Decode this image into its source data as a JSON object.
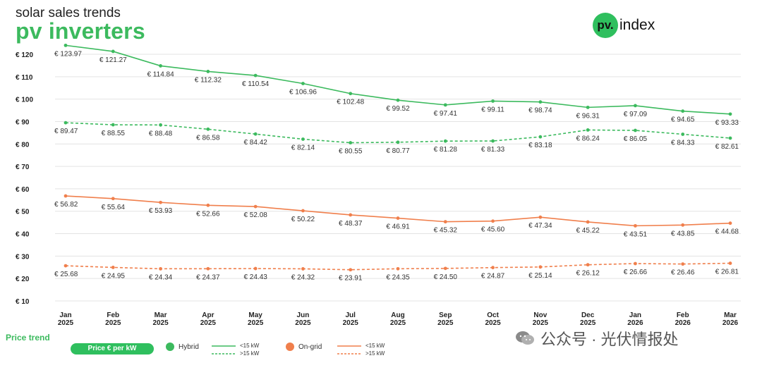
{
  "header": {
    "subtitle": "solar sales trends",
    "title": "pv inverters",
    "logo_badge": "pv.",
    "logo_text": "index"
  },
  "legend": {
    "title": "Price trend",
    "pill_label": "Price € per kW",
    "hybrid_label": "Hybrid",
    "hybrid_color": "#3cba5e",
    "ongrid_label": "On-grid",
    "ongrid_color": "#f07f4c",
    "hybrid_lt15": "<15 kW",
    "hybrid_gt15": ">15 kW",
    "ongrid_lt15": "<15 kW",
    "ongrid_gt15": ">15 kW"
  },
  "watermark": {
    "text": "公众号 · 光伏情报处"
  },
  "chart_data": {
    "type": "line",
    "categories": [
      [
        "Jan",
        "2025"
      ],
      [
        "Feb",
        "2025"
      ],
      [
        "Mar",
        "2025"
      ],
      [
        "Apr",
        "2025"
      ],
      [
        "May",
        "2025"
      ],
      [
        "Jun",
        "2025"
      ],
      [
        "Jul",
        "2025"
      ],
      [
        "Aug",
        "2025"
      ],
      [
        "Sep",
        "2025"
      ],
      [
        "Oct",
        "2025"
      ],
      [
        "Nov",
        "2025"
      ],
      [
        "Dec",
        "2025"
      ],
      [
        "Jan",
        "2026"
      ],
      [
        "Feb",
        "2026"
      ],
      [
        "Mar",
        "2026"
      ]
    ],
    "yticks": [
      "€ 10",
      "€ 20",
      "€ 30",
      "€ 40",
      "€ 50",
      "€ 60",
      "€ 70",
      "€ 80",
      "€ 90",
      "€ 100",
      "€ 110",
      "€ 120"
    ],
    "ylim": [
      10,
      122
    ],
    "series": [
      {
        "name": "Hybrid <15 kW",
        "color": "#3cba5e",
        "dash": false,
        "values": [
          123.97,
          121.27,
          114.84,
          112.32,
          110.54,
          106.96,
          102.48,
          99.52,
          97.41,
          99.11,
          98.74,
          96.31,
          97.09,
          94.65,
          93.33
        ],
        "labels": [
          "€ 123.97",
          "€ 121.27",
          "€ 114.84",
          "€ 112.32",
          "€ 110.54",
          "€ 106.96",
          "€ 102.48",
          "€ 99.52",
          "€ 97.41",
          "€ 99.11",
          "€ 98.74",
          "€ 96.31",
          "€ 97.09",
          "€ 94.65",
          "€ 93.33"
        ]
      },
      {
        "name": "Hybrid >15 kW",
        "color": "#3cba5e",
        "dash": true,
        "values": [
          89.47,
          88.55,
          88.48,
          86.58,
          84.42,
          82.14,
          80.55,
          80.77,
          81.28,
          81.33,
          83.18,
          86.24,
          86.05,
          84.33,
          82.61
        ],
        "labels": [
          "€ 89.47",
          "€ 88.55",
          "€ 88.48",
          "€ 86.58",
          "€ 84.42",
          "€ 82.14",
          "€ 80.55",
          "€ 80.77",
          "€ 81.28",
          "€ 81.33",
          "€ 83.18",
          "€ 86.24",
          "€ 86.05",
          "€ 84.33",
          "€ 82.61"
        ]
      },
      {
        "name": "On-grid <15 kW",
        "color": "#f07f4c",
        "dash": false,
        "values": [
          56.82,
          55.64,
          53.93,
          52.66,
          52.08,
          50.22,
          48.37,
          46.91,
          45.32,
          45.6,
          47.34,
          45.22,
          43.51,
          43.85,
          44.68
        ],
        "labels": [
          "€ 56.82",
          "€ 55.64",
          "€ 53.93",
          "€ 52.66",
          "€ 52.08",
          "€ 50.22",
          "€ 48.37",
          "€ 46.91",
          "€ 45.32",
          "€ 45.60",
          "€ 47.34",
          "€ 45.22",
          "€ 43.51",
          "€ 43.85",
          "€ 44.68"
        ]
      },
      {
        "name": "On-grid >15 kW",
        "color": "#f07f4c",
        "dash": true,
        "values": [
          25.68,
          24.95,
          24.34,
          24.37,
          24.43,
          24.32,
          23.91,
          24.35,
          24.5,
          24.87,
          25.14,
          26.12,
          26.66,
          26.46,
          26.81
        ],
        "labels": [
          "€ 25.68",
          "€ 24.95",
          "€ 24.34",
          "€ 24.37",
          "€ 24.43",
          "€ 24.32",
          "€ 23.91",
          "€ 24.35",
          "€ 24.50",
          "€ 24.87",
          "€ 25.14",
          "€ 26.12",
          "€ 26.66",
          "€ 26.46",
          "€ 26.81"
        ]
      }
    ]
  }
}
